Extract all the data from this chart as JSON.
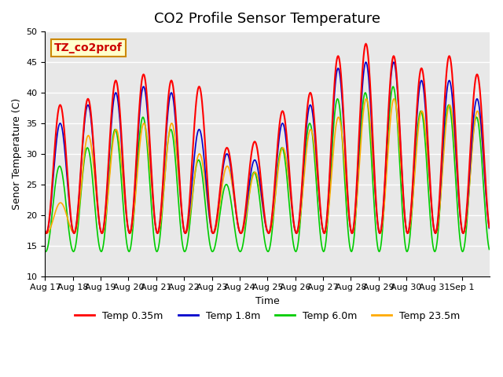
{
  "title": "CO2 Profile Sensor Temperature",
  "ylabel": "Senor Temperature (C)",
  "xlabel": "Time",
  "annotation_text": "TZ_co2prof",
  "annotation_color": "#cc0000",
  "annotation_bg": "#ffffcc",
  "annotation_border": "#cc8800",
  "ylim": [
    10,
    50
  ],
  "plot_bg": "#e8e8e8",
  "grid_color": "white",
  "series": [
    {
      "label": "Temp 0.35m",
      "color": "#ff0000"
    },
    {
      "label": "Temp 1.8m",
      "color": "#0000cc"
    },
    {
      "label": "Temp 6.0m",
      "color": "#00cc00"
    },
    {
      "label": "Temp 23.5m",
      "color": "#ffaa00"
    }
  ],
  "x_tick_labels": [
    "Aug 17",
    "Aug 18",
    "Aug 19",
    "Aug 20",
    "Aug 21",
    "Aug 22",
    "Aug 23",
    "Aug 24",
    "Aug 25",
    "Aug 26",
    "Aug 27",
    "Aug 28",
    "Aug 29",
    "Aug 30",
    "Aug 31",
    "Sep 1"
  ],
  "n_days": 16,
  "pts_per_day": 48,
  "legend_fontsize": 9,
  "title_fontsize": 13,
  "axis_fontsize": 9,
  "tick_fontsize": 8,
  "day_amps_red": [
    21,
    22,
    25,
    26,
    25,
    24,
    14,
    15,
    20,
    23,
    29,
    31,
    29,
    27,
    29,
    26
  ],
  "day_amps_blue": [
    18,
    21,
    23,
    24,
    23,
    17,
    13,
    12,
    18,
    21,
    27,
    28,
    28,
    25,
    25,
    22
  ],
  "day_amps_green": [
    14,
    17,
    20,
    22,
    20,
    15,
    11,
    13,
    17,
    21,
    25,
    26,
    27,
    23,
    24,
    22
  ],
  "day_amps_orange": [
    5,
    16,
    17,
    18,
    18,
    13,
    11,
    10,
    14,
    17,
    19,
    22,
    22,
    20,
    21,
    20
  ],
  "base_red": 17,
  "base_blue": 17,
  "base_green": 14,
  "base_orange": 17,
  "phase_green": 0.5,
  "phase_orange": -0.3,
  "peak_hour": 13,
  "yticks": [
    10,
    15,
    20,
    25,
    30,
    35,
    40,
    45,
    50
  ]
}
